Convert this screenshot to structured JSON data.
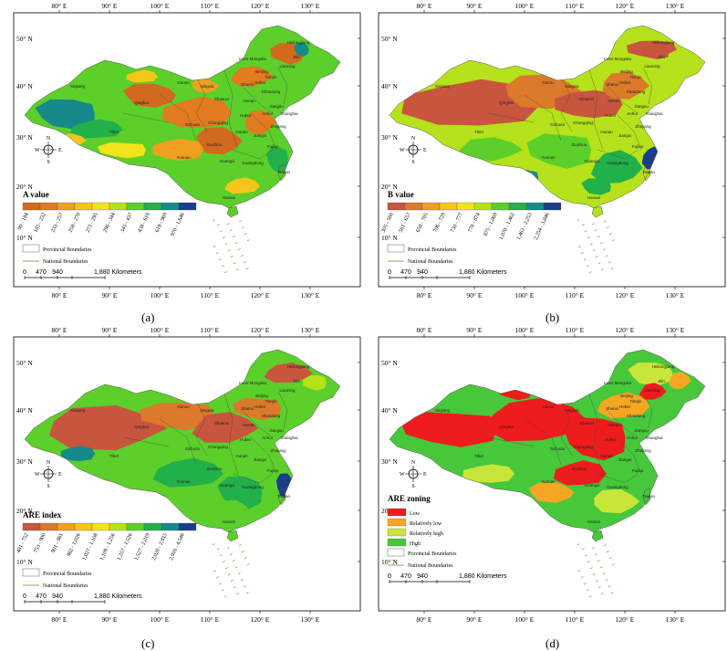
{
  "figure": {
    "captions": [
      "(a)",
      "(b)",
      "(c)",
      "(d)"
    ],
    "top_longitudes": [
      "80° E",
      "90° E",
      "100° E",
      "110° E",
      "120° E",
      "130° E"
    ],
    "bottom_longitudes": [
      "80° E",
      "90° E",
      "100° E",
      "110° E",
      "120° E",
      "130° E"
    ],
    "left_latitudes": [
      "50° N",
      "40° N",
      "30° N",
      "20° N",
      "10° N"
    ],
    "right_latitudes": [
      "50° N",
      "40° N",
      "30° N",
      "20° N",
      "10° N"
    ],
    "compass": {
      "n": "N",
      "s": "S",
      "e": "E",
      "w": "W"
    },
    "boundary_legend": {
      "provincial": "Provincial Boundaries",
      "national": "National Boundaries"
    },
    "scale_bar": {
      "ticks": [
        "0",
        "470",
        "940",
        "1,880 Kilometers"
      ]
    },
    "province_labels": [
      "Heilongjiang",
      "Jilin",
      "Liaoning",
      "Inner Mongolia",
      "Beijing",
      "Tianjin",
      "Hebei",
      "Shanxi",
      "Shandong",
      "Henan",
      "Jiangsu",
      "Anhui",
      "Shanghai",
      "Zhejiang",
      "Hubei",
      "Hunan",
      "Jiangxi",
      "Fujian",
      "Guangdong",
      "Guangxi",
      "Guizhou",
      "Yunnan",
      "Sichuan",
      "Chongqing",
      "Shaanxi",
      "Gansu",
      "Ningxia",
      "Qinghai",
      "Xinjiang",
      "Tibet",
      "Taiwan",
      "Hainan"
    ]
  },
  "panels": [
    {
      "id": "a",
      "legend_title": "A value",
      "classes": [
        "90 - 184",
        "185 - 232",
        "233 - 257",
        "258 - 270",
        "271 - 295",
        "296 - 344",
        "345 - 437",
        "438 - 618",
        "619 - 969",
        "970 - 1,646"
      ],
      "colors": [
        "#d2691e",
        "#e07b1f",
        "#f0a020",
        "#f6c51a",
        "#f2e31a",
        "#b5e21a",
        "#5ccf2a",
        "#22b04a",
        "#168a8a",
        "#1a3c8c"
      ]
    },
    {
      "id": "b",
      "legend_title": "B value",
      "classes": [
        "305 - 560",
        "561 - 657",
        "658 - 705",
        "706 - 729",
        "730 - 777",
        "778 - 874",
        "875 - 1,069",
        "1,070 - 1,462",
        "1,463 - 2,253",
        "2,254 - 3,846"
      ],
      "colors": [
        "#c8553d",
        "#db7a2a",
        "#eca122",
        "#f6c51a",
        "#f2e31a",
        "#b5e21a",
        "#5ccf2a",
        "#22b04a",
        "#168a8a",
        "#1a3c8c"
      ]
    },
    {
      "id": "c",
      "legend_title": "ARE index",
      "classes": [
        "481 - 752",
        "753 - 900",
        "901 - 981",
        "982 - 1,026",
        "1,027 - 1,108",
        "1,109 - 1,256",
        "1,257 - 1,526",
        "1,527 - 2,019",
        "2,020 - 2,915",
        "2,916 - 4,546"
      ],
      "colors": [
        "#c8553d",
        "#db7a2a",
        "#eca122",
        "#f6c51a",
        "#f2e31a",
        "#b5e21a",
        "#5ccf2a",
        "#22b04a",
        "#168a8a",
        "#1a3c8c"
      ]
    },
    {
      "id": "d",
      "legend_title": "ARE zoning",
      "zones": [
        "Low",
        "Relatively low",
        "Relatively high",
        "High"
      ],
      "colors": [
        "#ee1c1c",
        "#f5a623",
        "#c8e63a",
        "#46c83a"
      ]
    }
  ]
}
